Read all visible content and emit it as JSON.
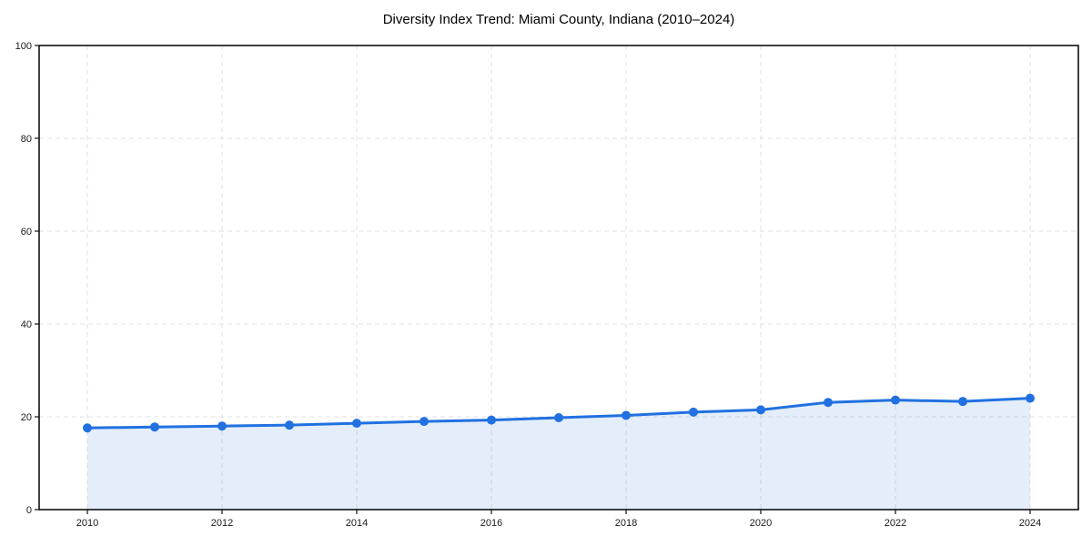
{
  "title": "Diversity Index Trend: Miami County, Indiana (2010–2024)",
  "chart_data": {
    "type": "line",
    "title": "Diversity Index Trend: Miami County, Indiana (2010–2024)",
    "x": [
      2010,
      2011,
      2012,
      2013,
      2014,
      2015,
      2016,
      2017,
      2018,
      2019,
      2020,
      2021,
      2022,
      2023,
      2024
    ],
    "series": [
      {
        "name": "Diversity Index",
        "values": [
          17.6,
          17.8,
          18.0,
          18.2,
          18.6,
          19.0,
          19.3,
          19.8,
          20.3,
          21.0,
          21.5,
          23.1,
          23.6,
          23.3,
          24.0
        ]
      }
    ],
    "xticks": [
      2010,
      2012,
      2014,
      2016,
      2018,
      2020,
      2022,
      2024
    ],
    "yticks": [
      0,
      20,
      40,
      60,
      80,
      100
    ],
    "xlabel": "",
    "ylabel": "",
    "ylim": [
      0,
      100
    ],
    "grid": true,
    "grid_style": "dashed",
    "legend_position": "none",
    "marker": "circle",
    "colors": {
      "line": "#2171e0",
      "marker": "#2171e0",
      "area_fill": "rgba(33, 113, 224, 0.12)",
      "gridline": "#e2e2e2",
      "spine": "#111111",
      "tick_label": "#1a1a1a",
      "title": "#000000",
      "background": "#ffffff"
    }
  }
}
